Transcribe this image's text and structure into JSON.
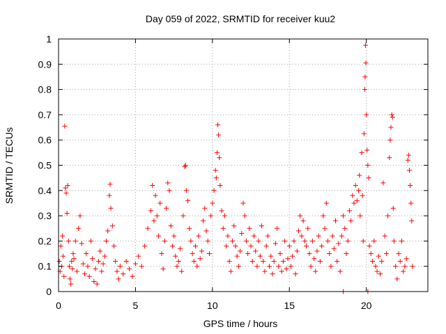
{
  "chart_data": {
    "type": "scatter",
    "title": "Day 059 of 2022, SRMTID for receiver kuu2",
    "xlabel": "GPS time / hours",
    "ylabel": "SRMTID / TECUs",
    "xlim": [
      0,
      24
    ],
    "ylim": [
      0,
      1
    ],
    "x_ticks": [
      0,
      5,
      10,
      15,
      20
    ],
    "x_tick_labels": [
      "0",
      "5",
      "10",
      "15",
      "20"
    ],
    "y_ticks": [
      0,
      0.1,
      0.2,
      0.3,
      0.4,
      0.5,
      0.6,
      0.7,
      0.8,
      0.9,
      1
    ],
    "y_tick_labels": [
      "0",
      "0.1",
      "0.2",
      "0.3",
      "0.4",
      "0.5",
      "0.6",
      "0.7",
      "0.8",
      "0.9",
      "1"
    ],
    "grid": true,
    "marker": "+",
    "color": "#ff0000",
    "series": [
      {
        "name": "SRMTID",
        "points": [
          [
            0.05,
            0.12
          ],
          [
            0.1,
            0.08
          ],
          [
            0.15,
            0.18
          ],
          [
            0.2,
            0.1
          ],
          [
            0.25,
            0.22
          ],
          [
            0.3,
            0.14
          ],
          [
            0.35,
            0.06
          ],
          [
            0.4,
            0.655
          ],
          [
            0.45,
            0.41
          ],
          [
            0.5,
            0.39
          ],
          [
            0.55,
            0.31
          ],
          [
            0.6,
            0.42
          ],
          [
            0.65,
            0.2
          ],
          [
            0.7,
            0.1
          ],
          [
            0.75,
            0.05
          ],
          [
            0.8,
            0.03
          ],
          [
            0.85,
            0.12
          ],
          [
            0.9,
            0.09
          ],
          [
            0.95,
            0.15
          ],
          [
            1.0,
            0.13
          ],
          [
            1.1,
            0.2
          ],
          [
            1.2,
            0.08
          ],
          [
            1.3,
            0.25
          ],
          [
            1.4,
            0.3
          ],
          [
            1.5,
            0.19
          ],
          [
            1.6,
            0.11
          ],
          [
            1.7,
            0.07
          ],
          [
            1.8,
            0.15
          ],
          [
            1.9,
            0.1
          ],
          [
            2.0,
            0.06
          ],
          [
            2.1,
            0.2
          ],
          [
            2.2,
            0.13
          ],
          [
            2.3,
            0.04
          ],
          [
            2.4,
            0.09
          ],
          [
            2.5,
            0.03
          ],
          [
            2.6,
            0.12
          ],
          [
            2.7,
            0.16
          ],
          [
            2.8,
            0.08
          ],
          [
            2.9,
            0.11
          ],
          [
            3.0,
            0.14
          ],
          [
            3.1,
            0.2
          ],
          [
            3.2,
            0.24
          ],
          [
            3.3,
            0.38
          ],
          [
            3.35,
            0.425
          ],
          [
            3.4,
            0.33
          ],
          [
            3.5,
            0.26
          ],
          [
            3.6,
            0.18
          ],
          [
            3.7,
            0.12
          ],
          [
            3.8,
            0.08
          ],
          [
            3.9,
            0.05
          ],
          [
            4.0,
            0.1
          ],
          [
            4.2,
            0.07
          ],
          [
            4.4,
            0.12
          ],
          [
            4.6,
            0.09
          ],
          [
            4.8,
            0.06
          ],
          [
            5.0,
            0.11
          ],
          [
            5.2,
            0.14
          ],
          [
            5.4,
            0.1
          ],
          [
            5.6,
            0.18
          ],
          [
            5.8,
            0.25
          ],
          [
            6.0,
            0.32
          ],
          [
            6.1,
            0.42
          ],
          [
            6.2,
            0.28
          ],
          [
            6.3,
            0.38
          ],
          [
            6.4,
            0.3
          ],
          [
            6.5,
            0.22
          ],
          [
            6.6,
            0.35
          ],
          [
            6.7,
            0.15
          ],
          [
            6.8,
            0.09
          ],
          [
            6.9,
            0.2
          ],
          [
            7.0,
            0.33
          ],
          [
            7.1,
            0.43
          ],
          [
            7.2,
            0.4
          ],
          [
            7.3,
            0.26
          ],
          [
            7.4,
            0.18
          ],
          [
            7.5,
            0.22
          ],
          [
            7.6,
            0.14
          ],
          [
            7.7,
            0.1
          ],
          [
            7.8,
            0.12
          ],
          [
            7.9,
            0.17
          ],
          [
            8.0,
            0.08
          ],
          [
            8.1,
            0.3
          ],
          [
            8.2,
            0.495
          ],
          [
            8.25,
            0.5
          ],
          [
            8.3,
            0.4
          ],
          [
            8.4,
            0.36
          ],
          [
            8.5,
            0.25
          ],
          [
            8.6,
            0.2
          ],
          [
            8.7,
            0.15
          ],
          [
            8.8,
            0.12
          ],
          [
            8.9,
            0.18
          ],
          [
            9.0,
            0.1
          ],
          [
            9.1,
            0.22
          ],
          [
            9.2,
            0.13
          ],
          [
            9.3,
            0.16
          ],
          [
            9.4,
            0.28
          ],
          [
            9.5,
            0.33
          ],
          [
            9.6,
            0.24
          ],
          [
            9.7,
            0.2
          ],
          [
            9.8,
            0.15
          ],
          [
            9.9,
            0.3
          ],
          [
            10.0,
            0.35
          ],
          [
            10.1,
            0.4
          ],
          [
            10.2,
            0.48
          ],
          [
            10.25,
            0.45
          ],
          [
            10.3,
            0.55
          ],
          [
            10.35,
            0.66
          ],
          [
            10.4,
            0.62
          ],
          [
            10.45,
            0.53
          ],
          [
            10.5,
            0.42
          ],
          [
            10.6,
            0.32
          ],
          [
            10.7,
            0.25
          ],
          [
            10.8,
            0.3
          ],
          [
            10.9,
            0.18
          ],
          [
            11.0,
            0.22
          ],
          [
            11.1,
            0.12
          ],
          [
            11.2,
            0.08
          ],
          [
            11.3,
            0.2
          ],
          [
            11.4,
            0.26
          ],
          [
            11.5,
            0.18
          ],
          [
            11.6,
            0.14
          ],
          [
            11.7,
            0.1
          ],
          [
            11.8,
            0.16
          ],
          [
            11.9,
            0.23
          ],
          [
            12.0,
            0.35
          ],
          [
            12.1,
            0.3
          ],
          [
            12.2,
            0.2
          ],
          [
            12.3,
            0.15
          ],
          [
            12.4,
            0.25
          ],
          [
            12.5,
            0.18
          ],
          [
            12.6,
            0.12
          ],
          [
            12.7,
            0.22
          ],
          [
            12.8,
            0.16
          ],
          [
            12.9,
            0.1
          ],
          [
            13.0,
            0.2
          ],
          [
            13.1,
            0.14
          ],
          [
            13.2,
            0.26
          ],
          [
            13.3,
            0.12
          ],
          [
            13.4,
            0.08
          ],
          [
            13.5,
            0.18
          ],
          [
            13.6,
            0.22
          ],
          [
            13.7,
            0.1
          ],
          [
            13.8,
            0.14
          ],
          [
            13.9,
            0.07
          ],
          [
            14.0,
            0.12
          ],
          [
            14.1,
            0.19
          ],
          [
            14.2,
            0.25
          ],
          [
            14.3,
            0.1
          ],
          [
            14.4,
            0.15
          ],
          [
            14.5,
            0.08
          ],
          [
            14.6,
            0.12
          ],
          [
            14.7,
            0.2
          ],
          [
            14.8,
            0.09
          ],
          [
            14.9,
            0.13
          ],
          [
            15.0,
            0.18
          ],
          [
            15.1,
            0.1
          ],
          [
            15.2,
            0.14
          ],
          [
            15.3,
            0.2
          ],
          [
            15.4,
            0.07
          ],
          [
            15.5,
            0.16
          ],
          [
            15.6,
            0.24
          ],
          [
            15.7,
            0.3
          ],
          [
            15.8,
            0.22
          ],
          [
            15.9,
            0.28
          ],
          [
            16.0,
            0.2
          ],
          [
            16.1,
            0.18
          ],
          [
            16.2,
            0.25
          ],
          [
            16.3,
            0.15
          ],
          [
            16.4,
            0.1
          ],
          [
            16.5,
            0.2
          ],
          [
            16.6,
            0.13
          ],
          [
            16.7,
            0.08
          ],
          [
            16.8,
            0.16
          ],
          [
            16.9,
            0.22
          ],
          [
            17.0,
            0.12
          ],
          [
            17.1,
            0.18
          ],
          [
            17.2,
            0.3
          ],
          [
            17.3,
            0.25
          ],
          [
            17.4,
            0.35
          ],
          [
            17.5,
            0.2
          ],
          [
            17.6,
            0.15
          ],
          [
            17.7,
            0.1
          ],
          [
            17.8,
            0.22
          ],
          [
            17.9,
            0.17
          ],
          [
            18.0,
            0.28
          ],
          [
            18.1,
            0.12
          ],
          [
            18.2,
            0.19
          ],
          [
            18.3,
            0.08
          ],
          [
            18.4,
            0.22
          ],
          [
            18.5,
            0.3
          ],
          [
            18.6,
            0.25
          ],
          [
            18.7,
            0.15
          ],
          [
            18.8,
            0.2
          ],
          [
            18.9,
            0.32
          ],
          [
            19.0,
            0.28
          ],
          [
            19.1,
            0.38
          ],
          [
            19.2,
            0.35
          ],
          [
            19.3,
            0.42
          ],
          [
            19.4,
            0.36
          ],
          [
            19.5,
            0.4
          ],
          [
            19.55,
            0.46
          ],
          [
            19.6,
            0.3
          ],
          [
            19.7,
            0.55
          ],
          [
            19.75,
            0.38
          ],
          [
            19.8,
            0.2
          ],
          [
            19.85,
            0.625
          ],
          [
            19.9,
            0.8
          ],
          [
            19.92,
            0.85
          ],
          [
            19.95,
            0.975
          ],
          [
            19.97,
            0.905
          ],
          [
            20.0,
            0.7
          ],
          [
            20.05,
            0.56
          ],
          [
            20.1,
            0.5
          ],
          [
            20.15,
            0.45
          ],
          [
            20.2,
            0.18
          ],
          [
            20.3,
            0.15
          ],
          [
            20.4,
            0.12
          ],
          [
            20.5,
            0.2
          ],
          [
            20.6,
            0.1
          ],
          [
            20.7,
            0.08
          ],
          [
            20.8,
            0.14
          ],
          [
            20.9,
            0.07
          ],
          [
            21.0,
            0.12
          ],
          [
            21.1,
            0.43
          ],
          [
            21.2,
            0.22
          ],
          [
            21.3,
            0.15
          ],
          [
            21.4,
            0.3
          ],
          [
            21.5,
            0.53
          ],
          [
            21.55,
            0.6
          ],
          [
            21.6,
            0.65
          ],
          [
            21.65,
            0.7
          ],
          [
            21.7,
            0.69
          ],
          [
            21.75,
            0.33
          ],
          [
            21.8,
            0.2
          ],
          [
            21.9,
            0.1
          ],
          [
            22.0,
            0.05
          ],
          [
            22.1,
            0.15
          ],
          [
            22.2,
            0.12
          ],
          [
            22.3,
            0.2
          ],
          [
            22.4,
            0.08
          ],
          [
            22.5,
            0.1
          ],
          [
            22.6,
            0.13
          ],
          [
            22.7,
            0.52
          ],
          [
            22.75,
            0.54
          ],
          [
            22.8,
            0.48
          ],
          [
            22.85,
            0.42
          ],
          [
            22.9,
            0.35
          ],
          [
            22.95,
            0.28
          ],
          [
            23.0,
            0.1
          ],
          [
            18.5,
            0.0
          ],
          [
            20.1,
            0.0
          ]
        ]
      }
    ]
  }
}
